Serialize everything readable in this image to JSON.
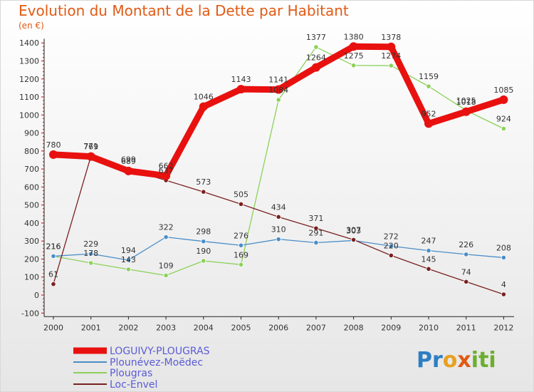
{
  "title": "Evolution du Montant de la Dette par Habitant",
  "subtitle": "(en €)",
  "logo_text": "Proxiti",
  "chart_data": {
    "type": "line",
    "title": "Evolution du Montant de la Dette par Habitant",
    "subtitle": "(en €)",
    "xlabel": "",
    "ylabel": "",
    "x": [
      "2000",
      "2001",
      "2002",
      "2003",
      "2004",
      "2005",
      "2006",
      "2007",
      "2008",
      "2009",
      "2010",
      "2011",
      "2012"
    ],
    "ylim": [
      -100,
      1400
    ],
    "yticks": [
      "-100",
      "0",
      "100",
      "200",
      "300",
      "400",
      "500",
      "600",
      "700",
      "800",
      "900",
      "1000",
      "1100",
      "1200",
      "1300",
      "1400"
    ],
    "grid": false,
    "legend_position": "bottom-left",
    "series": [
      {
        "name": "LOGUIVY-PLOUGRAS",
        "color": "#e8110f",
        "values": [
          780,
          769,
          689,
          662,
          1046,
          1143,
          1141,
          1264,
          1380,
          1378,
          952,
          1018,
          1085
        ],
        "labels": [
          "780",
          "769",
          "689",
          "662",
          "1046",
          "1143",
          "1141",
          "1264",
          "1380",
          "1378",
          "952",
          "1018",
          "1085"
        ]
      },
      {
        "name": "Plounévez-Moëdec",
        "color": "#4a8ec8",
        "values": [
          216,
          229,
          194,
          322,
          298,
          276,
          310,
          291,
          303,
          272,
          247,
          226,
          208
        ],
        "labels": [
          "216",
          "229",
          "194",
          "322",
          "298",
          "276",
          "310",
          "291",
          "303",
          "272",
          "247",
          "226",
          "208"
        ]
      },
      {
        "name": "Plougras",
        "color": "#8cd15a",
        "values": [
          216,
          178,
          143,
          109,
          190,
          169,
          1084,
          1377,
          1275,
          1274,
          1159,
          1025,
          924
        ],
        "labels": [
          "216",
          "178",
          "143",
          "109",
          "190",
          "169",
          "1084",
          "1377",
          "1275",
          "1274",
          "1159",
          "1025",
          "924"
        ]
      },
      {
        "name": "Loc-Envel",
        "color": "#7a2020",
        "values": [
          61,
          771,
          699,
          637,
          573,
          505,
          434,
          371,
          307,
          220,
          145,
          74,
          4
        ],
        "labels": [
          "61",
          "771",
          "699",
          "637",
          "573",
          "505",
          "434",
          "371",
          "307",
          "220",
          "145",
          "74",
          "4"
        ]
      }
    ]
  }
}
